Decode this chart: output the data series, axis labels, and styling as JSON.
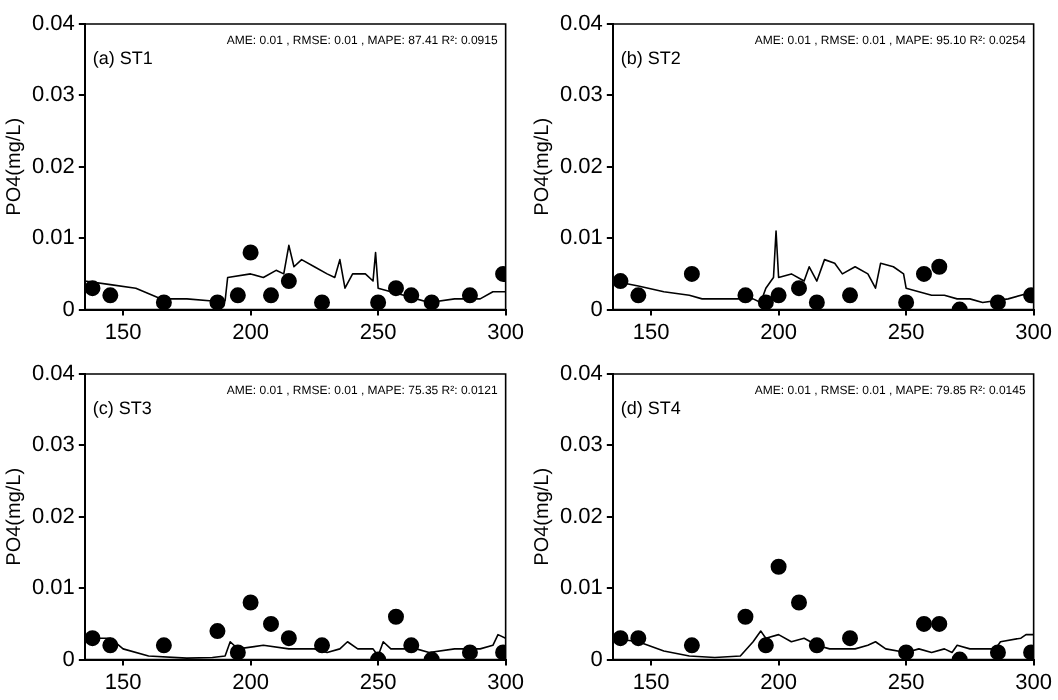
{
  "chart_data": [
    {
      "type": "scatter",
      "ylabel": "PO4(mg/L)",
      "annotations": [
        "(a) ST1",
        "AME: 0.01 , RMSE: 0.01 , MAPE: 87.41 R²: 0.0915"
      ],
      "xlim": [
        135,
        300
      ],
      "ylim": [
        0,
        0.04
      ],
      "xticks": [
        150,
        200,
        250,
        300
      ],
      "yticks": [
        0,
        0.01,
        0.02,
        0.03,
        0.04
      ],
      "grid": false,
      "legend": false,
      "series": [
        {
          "type": "line",
          "color": "#000000",
          "marker": "none",
          "x": [
            135,
            145,
            155,
            165,
            175,
            185,
            190,
            191,
            200,
            205,
            210,
            213,
            215,
            217,
            220,
            225,
            230,
            233,
            235,
            237,
            240,
            245,
            248,
            249,
            250,
            255,
            260,
            265,
            270,
            280,
            290,
            295,
            300
          ],
          "values": [
            0.004,
            0.0035,
            0.003,
            0.0015,
            0.0015,
            0.0012,
            0.0012,
            0.0045,
            0.005,
            0.0045,
            0.0055,
            0.005,
            0.009,
            0.006,
            0.007,
            0.006,
            0.005,
            0.0045,
            0.007,
            0.003,
            0.005,
            0.005,
            0.004,
            0.008,
            0.003,
            0.0025,
            0.002,
            0.0015,
            0.001,
            0.0015,
            0.0015,
            0.0025,
            0.0025
          ]
        },
        {
          "type": "scatter",
          "color": "#000000",
          "marker": "circle",
          "x": [
            138,
            145,
            166,
            187,
            195,
            200,
            208,
            215,
            228,
            250,
            257,
            263,
            271,
            286,
            299
          ],
          "values": [
            0.003,
            0.002,
            0.001,
            0.001,
            0.002,
            0.008,
            0.002,
            0.004,
            0.001,
            0.001,
            0.003,
            0.002,
            0.001,
            0.002,
            0.005
          ]
        }
      ]
    },
    {
      "type": "scatter",
      "ylabel": "PO4(mg/L)",
      "annotations": [
        "(b) ST2",
        "AME: 0.01 , RMSE: 0.01 , MAPE: 95.10 R²: 0.0254"
      ],
      "xlim": [
        135,
        300
      ],
      "ylim": [
        0,
        0.04
      ],
      "xticks": [
        150,
        200,
        250,
        300
      ],
      "yticks": [
        0,
        0.01,
        0.02,
        0.03,
        0.04
      ],
      "grid": false,
      "legend": false,
      "series": [
        {
          "type": "line",
          "color": "#000000",
          "marker": "none",
          "x": [
            135,
            145,
            155,
            165,
            170,
            180,
            190,
            193,
            195,
            197,
            198,
            199,
            200,
            205,
            210,
            212,
            215,
            218,
            222,
            225,
            230,
            235,
            238,
            240,
            245,
            249,
            250,
            255,
            260,
            265,
            270,
            275,
            280,
            290,
            300
          ],
          "values": [
            0.004,
            0.0033,
            0.0025,
            0.002,
            0.0015,
            0.0015,
            0.0015,
            0.001,
            0.003,
            0.004,
            0.0045,
            0.011,
            0.0045,
            0.005,
            0.004,
            0.006,
            0.004,
            0.007,
            0.0065,
            0.005,
            0.006,
            0.005,
            0.003,
            0.0065,
            0.006,
            0.005,
            0.003,
            0.0025,
            0.002,
            0.002,
            0.0015,
            0.0015,
            0.001,
            0.0015,
            0.0025
          ]
        },
        {
          "type": "scatter",
          "color": "#000000",
          "marker": "circle",
          "x": [
            138,
            145,
            166,
            187,
            195,
            200,
            208,
            215,
            228,
            250,
            257,
            263,
            271,
            286,
            299
          ],
          "values": [
            0.004,
            0.002,
            0.005,
            0.002,
            0.001,
            0.002,
            0.003,
            0.001,
            0.002,
            0.001,
            0.005,
            0.006,
            0,
            0.001,
            0.002
          ]
        }
      ]
    },
    {
      "type": "scatter",
      "ylabel": "PO4(mg/L)",
      "annotations": [
        "(c) ST3",
        "AME: 0.01 , RMSE: 0.01 , MAPE: 75.35 R²: 0.0121"
      ],
      "xlim": [
        135,
        300
      ],
      "ylim": [
        0,
        0.04
      ],
      "xticks": [
        150,
        200,
        250,
        300
      ],
      "yticks": [
        0,
        0.01,
        0.02,
        0.03,
        0.04
      ],
      "grid": false,
      "legend": false,
      "series": [
        {
          "type": "line",
          "color": "#000000",
          "marker": "none",
          "x": [
            135,
            145,
            150,
            160,
            175,
            185,
            190,
            192,
            195,
            205,
            215,
            225,
            230,
            235,
            238,
            242,
            248,
            250,
            252,
            255,
            265,
            270,
            280,
            290,
            295,
            297,
            300
          ],
          "values": [
            0.003,
            0.003,
            0.0015,
            0.0005,
            0.0002,
            0.0003,
            0.0005,
            0.0025,
            0.0015,
            0.002,
            0.0015,
            0.0015,
            0.001,
            0.0015,
            0.0025,
            0.0015,
            0.0015,
            0.0005,
            0.0025,
            0.0015,
            0.0015,
            0.001,
            0.0015,
            0.0015,
            0.002,
            0.0035,
            0.003
          ]
        },
        {
          "type": "scatter",
          "color": "#000000",
          "marker": "circle",
          "x": [
            138,
            145,
            166,
            187,
            195,
            200,
            208,
            215,
            228,
            250,
            257,
            263,
            271,
            286,
            299
          ],
          "values": [
            0.003,
            0.002,
            0.002,
            0.004,
            0.001,
            0.008,
            0.005,
            0.003,
            0.002,
            0,
            0.006,
            0.002,
            0,
            0.001,
            0.001
          ]
        }
      ]
    },
    {
      "type": "scatter",
      "ylabel": "PO4(mg/L)",
      "annotations": [
        "(d) ST4",
        "AME: 0.01 , RMSE: 0.01 , MAPE: 79.85 R²: 0.0145"
      ],
      "xlim": [
        135,
        300
      ],
      "ylim": [
        0,
        0.04
      ],
      "xticks": [
        150,
        200,
        250,
        300
      ],
      "yticks": [
        0,
        0.01,
        0.02,
        0.03,
        0.04
      ],
      "grid": false,
      "legend": false,
      "series": [
        {
          "type": "line",
          "color": "#000000",
          "marker": "none",
          "x": [
            135,
            145,
            155,
            165,
            175,
            185,
            190,
            193,
            195,
            200,
            205,
            210,
            215,
            220,
            230,
            235,
            238,
            242,
            250,
            255,
            260,
            265,
            268,
            270,
            275,
            285,
            287,
            295,
            297,
            300
          ],
          "values": [
            0.003,
            0.0025,
            0.0012,
            0.0005,
            0.0003,
            0.0005,
            0.0025,
            0.004,
            0.003,
            0.0035,
            0.0025,
            0.003,
            0.002,
            0.0015,
            0.0015,
            0.002,
            0.0025,
            0.0015,
            0.001,
            0.0015,
            0.001,
            0.0015,
            0.001,
            0.002,
            0.0015,
            0.0015,
            0.0025,
            0.003,
            0.0035,
            0.0035
          ]
        },
        {
          "type": "scatter",
          "color": "#000000",
          "marker": "circle",
          "x": [
            138,
            145,
            166,
            187,
            195,
            200,
            208,
            215,
            228,
            250,
            257,
            263,
            271,
            286,
            299
          ],
          "values": [
            0.003,
            0.003,
            0.002,
            0.006,
            0.002,
            0.013,
            0.008,
            0.002,
            0.003,
            0.001,
            0.005,
            0.005,
            0,
            0.001,
            0.001
          ]
        }
      ]
    }
  ]
}
